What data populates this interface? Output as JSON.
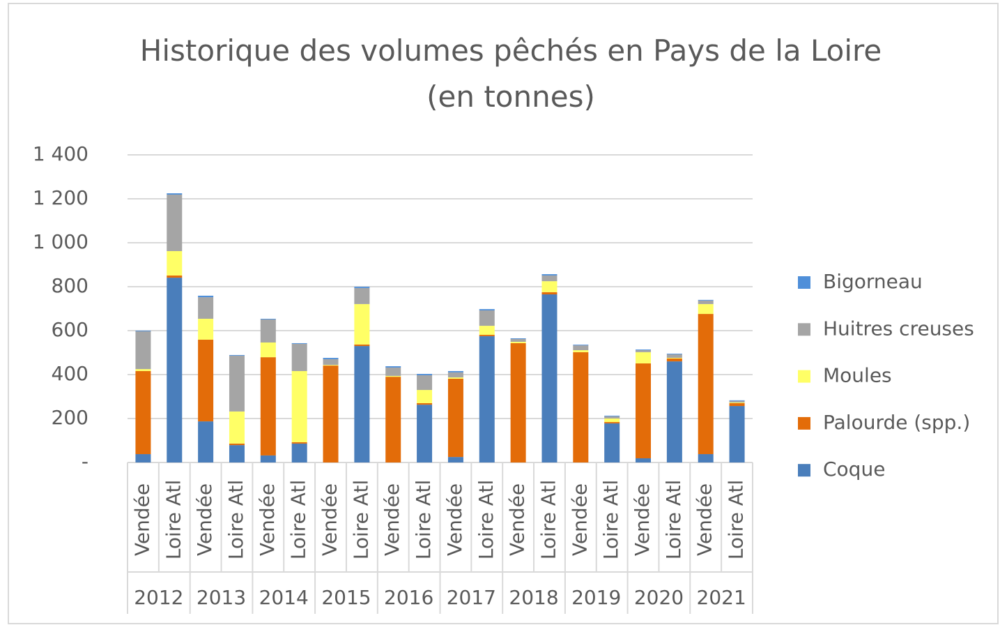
{
  "chart_data": {
    "type": "stacked_bar",
    "title": "Historique des volumes pêchés en Pays de la Loire (en tonnes)",
    "categories": [
      "Vendée",
      "Loire Atl",
      "Vendée",
      "Loire Atl",
      "Vendée",
      "Loire Atl",
      "Vendée",
      "Loire Atl",
      "Vendée",
      "Loire Atl",
      "Vendée",
      "Loire Atl",
      "Vendée",
      "Loire Atl",
      "Vendée",
      "Loire Atl",
      "Vendée",
      "Loire Atl",
      "Vendée",
      "Loire Atl"
    ],
    "groups": [
      "2012",
      "2013",
      "2014",
      "2015",
      "2016",
      "2017",
      "2018",
      "2019",
      "2020",
      "2021"
    ],
    "series": [
      {
        "name": "Coque",
        "color": "#4a7ebb",
        "values": [
          38,
          841,
          187,
          79,
          32,
          86,
          0,
          530,
          0,
          263,
          25,
          575,
          0,
          765,
          0,
          178,
          19,
          460,
          38,
          257
        ]
      },
      {
        "name": "Palourde (spp.)",
        "color": "#e36c09",
        "values": [
          378,
          10,
          372,
          7,
          447,
          6,
          441,
          7,
          390,
          7,
          356,
          6,
          543,
          10,
          502,
          6,
          432,
          13,
          638,
          13
        ]
      },
      {
        "name": "Moules",
        "color": "#ffff66",
        "values": [
          9,
          111,
          95,
          146,
          67,
          324,
          3,
          184,
          4,
          60,
          6,
          41,
          6,
          50,
          9,
          16,
          51,
          3,
          45,
          3
        ]
      },
      {
        "name": "Huitres creuses",
        "color": "#a5a5a5",
        "values": [
          172,
          257,
          98,
          254,
          105,
          124,
          26,
          73,
          38,
          67,
          23,
          70,
          13,
          26,
          22,
          10,
          9,
          16,
          16,
          7
        ]
      },
      {
        "name": "Bigorneau",
        "color": "#4f8fd9",
        "values": [
          3,
          6,
          7,
          3,
          3,
          3,
          6,
          6,
          6,
          6,
          6,
          6,
          3,
          6,
          3,
          3,
          3,
          3,
          3,
          3
        ]
      }
    ],
    "ylim": [
      0,
      1400
    ],
    "yticks": [
      {
        "value": 0,
        "label": "-"
      },
      200,
      400,
      600,
      800,
      {
        "value": 1000,
        "label": "1 000"
      },
      {
        "value": 1200,
        "label": "1 200"
      },
      {
        "value": 1400,
        "label": "1 400"
      }
    ],
    "grid": true,
    "legend": "right"
  }
}
